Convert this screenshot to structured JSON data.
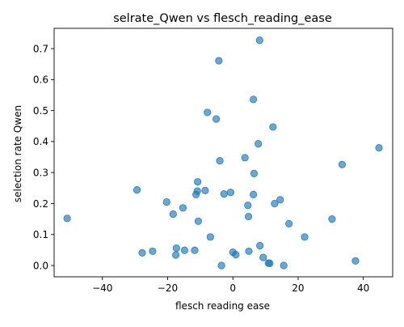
{
  "chart_data": {
    "type": "scatter",
    "title": "selrate_Qwen vs flesch_reading_ease",
    "xlabel": "flesch reading ease",
    "ylabel": "selection rate Qwen",
    "xlim": [
      -54.8,
      49.0
    ],
    "ylim": [
      -0.0365,
      0.7655
    ],
    "xticks": [
      -40,
      -20,
      0,
      20,
      40
    ],
    "xtick_labels": [
      "−40",
      "−20",
      "0",
      "20",
      "40"
    ],
    "yticks": [
      0.0,
      0.1,
      0.2,
      0.3,
      0.4,
      0.5,
      0.6,
      0.7
    ],
    "ytick_labels": [
      "0.0",
      "0.1",
      "0.2",
      "0.3",
      "0.4",
      "0.5",
      "0.6",
      "0.7"
    ],
    "grid": false,
    "marker_color": "#1f77b4",
    "marker_alpha": 0.65,
    "series": [
      {
        "points": [
          {
            "x": 8.2,
            "y": 0.727
          },
          {
            "x": -4.3,
            "y": 0.661
          },
          {
            "x": 6.3,
            "y": 0.536
          },
          {
            "x": -7.8,
            "y": 0.494
          },
          {
            "x": -5.1,
            "y": 0.473
          },
          {
            "x": 12.3,
            "y": 0.447
          },
          {
            "x": 7.8,
            "y": 0.393
          },
          {
            "x": 44.8,
            "y": 0.38
          },
          {
            "x": 3.7,
            "y": 0.348
          },
          {
            "x": -4.0,
            "y": 0.338
          },
          {
            "x": 33.5,
            "y": 0.326
          },
          {
            "x": 6.5,
            "y": 0.297
          },
          {
            "x": -10.8,
            "y": 0.27
          },
          {
            "x": -29.4,
            "y": 0.244
          },
          {
            "x": -8.5,
            "y": 0.242
          },
          {
            "x": -10.9,
            "y": 0.24
          },
          {
            "x": -0.7,
            "y": 0.236
          },
          {
            "x": -2.7,
            "y": 0.231
          },
          {
            "x": -11.3,
            "y": 0.229
          },
          {
            "x": 6.3,
            "y": 0.229
          },
          {
            "x": 14.5,
            "y": 0.212
          },
          {
            "x": -20.3,
            "y": 0.205
          },
          {
            "x": 12.8,
            "y": 0.2
          },
          {
            "x": 4.6,
            "y": 0.194
          },
          {
            "x": -15.3,
            "y": 0.186
          },
          {
            "x": -18.3,
            "y": 0.166
          },
          {
            "x": 4.8,
            "y": 0.158
          },
          {
            "x": -50.8,
            "y": 0.152
          },
          {
            "x": 30.4,
            "y": 0.15
          },
          {
            "x": -10.6,
            "y": 0.143
          },
          {
            "x": 17.2,
            "y": 0.135
          },
          {
            "x": -6.9,
            "y": 0.092
          },
          {
            "x": 22.0,
            "y": 0.092
          },
          {
            "x": 8.3,
            "y": 0.064
          },
          {
            "x": -17.3,
            "y": 0.056
          },
          {
            "x": -14.8,
            "y": 0.049
          },
          {
            "x": -11.7,
            "y": 0.049
          },
          {
            "x": -24.6,
            "y": 0.046
          },
          {
            "x": 4.9,
            "y": 0.046
          },
          {
            "x": 0.0,
            "y": 0.043
          },
          {
            "x": -27.8,
            "y": 0.041
          },
          {
            "x": 0.9,
            "y": 0.035
          },
          {
            "x": -17.5,
            "y": 0.034
          },
          {
            "x": 9.3,
            "y": 0.026
          },
          {
            "x": 37.6,
            "y": 0.015
          },
          {
            "x": 10.9,
            "y": 0.008
          },
          {
            "x": 11.3,
            "y": 0.007
          },
          {
            "x": -3.5,
            "y": 0.0
          },
          {
            "x": 15.6,
            "y": 0.0
          }
        ]
      }
    ]
  }
}
